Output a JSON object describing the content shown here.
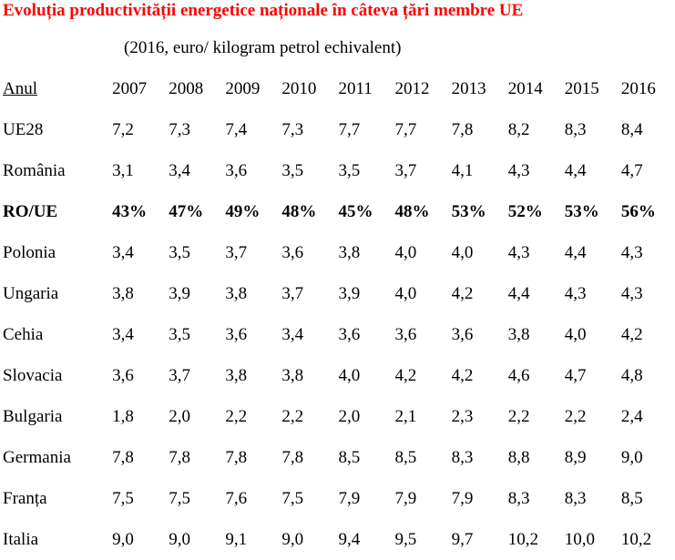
{
  "title": "Evoluția productivității  energetice naționale în câteva țări membre UE",
  "subtitle": "(2016, euro/ kilogram petrol echivalent)",
  "table": {
    "header_label": "Anul",
    "years": [
      "2007",
      "2008",
      "2009",
      "2010",
      "2011",
      "2012",
      "2013",
      "2014",
      "2015",
      "2016"
    ],
    "rows": [
      {
        "label": "UE28",
        "bold": false,
        "values": [
          "7,2",
          "7,3",
          "7,4",
          "7,3",
          "7,7",
          "7,7",
          "7,8",
          "8,2",
          "8,3",
          "8,4"
        ]
      },
      {
        "label": "România",
        "bold": false,
        "values": [
          "3,1",
          "3,4",
          "3,6",
          "3,5",
          "3,5",
          "3,7",
          "4,1",
          "4,3",
          "4,4",
          "4,7"
        ]
      },
      {
        "label": "RO/UE",
        "bold": true,
        "values": [
          "43%",
          "47%",
          "49%",
          "48%",
          "45%",
          "48%",
          "53%",
          "52%",
          "53%",
          "56%"
        ]
      },
      {
        "label": "Polonia",
        "bold": false,
        "values": [
          "3,4",
          "3,5",
          "3,7",
          "3,6",
          "3,8",
          "4,0",
          "4,0",
          "4,3",
          "4,4",
          "4,3"
        ]
      },
      {
        "label": "Ungaria",
        "bold": false,
        "values": [
          "3,8",
          "3,9",
          "3,8",
          "3,7",
          "3,9",
          "4,0",
          "4,2",
          "4,4",
          "4,3",
          "4,3"
        ]
      },
      {
        "label": "Cehia",
        "bold": false,
        "values": [
          "3,4",
          "3,5",
          "3,6",
          "3,4",
          "3,6",
          "3,6",
          "3,6",
          "3,8",
          "4,0",
          "4,2"
        ]
      },
      {
        "label": "Slovacia",
        "bold": false,
        "values": [
          "3,6",
          "3,7",
          "3,8",
          "3,8",
          "4,0",
          "4,2",
          "4,2",
          "4,6",
          "4,7",
          "4,8"
        ]
      },
      {
        "label": "Bulgaria",
        "bold": false,
        "values": [
          "1,8",
          "2,0",
          "2,2",
          "2,2",
          "2,0",
          "2,1",
          "2,3",
          "2,2",
          "2,2",
          "2,4"
        ]
      },
      {
        "label": "Germania",
        "bold": false,
        "values": [
          "7,8",
          "7,8",
          "7,8",
          "7,8",
          "8,5",
          "8,5",
          "8,3",
          "8,8",
          "8,9",
          "9,0"
        ]
      },
      {
        "label": "Franța",
        "bold": false,
        "values": [
          "7,5",
          "7,5",
          "7,6",
          "7,5",
          "7,9",
          "7,9",
          "7,9",
          "8,3",
          "8,3",
          "8,5"
        ]
      },
      {
        "label": "Italia",
        "bold": false,
        "values": [
          "9,0",
          "9,0",
          "9,1",
          "9,0",
          "9,4",
          "9,5",
          "9,7",
          "10,2",
          "10,0",
          "10,2"
        ]
      }
    ]
  }
}
